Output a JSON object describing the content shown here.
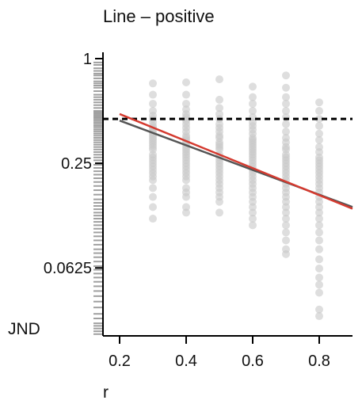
{
  "chart_data": {
    "type": "scatter",
    "title": "Line – positive",
    "xlabel": "r",
    "ylabel": "JND",
    "xlim": [
      0.15,
      0.9
    ],
    "ylim": [
      0.0254,
      1
    ],
    "yscale": "log",
    "xticks": [
      0.2,
      0.4,
      0.6,
      0.8
    ],
    "xtick_labels": [
      "0.2",
      "0.4",
      "0.6",
      "0.8"
    ],
    "yticks": [
      1,
      0.25,
      0.0625
    ],
    "ytick_labels": [
      "1",
      "0.25",
      "0.0625"
    ],
    "reference_line_y": 0.45,
    "fit_lines": [
      {
        "color": "#555555",
        "x": [
          0.2,
          0.9
        ],
        "y": [
          0.44,
          0.14
        ]
      },
      {
        "color": "#d43a2f",
        "x": [
          0.2,
          0.9
        ],
        "y": [
          0.48,
          0.137
        ]
      }
    ],
    "point_color": "#c8c8c8",
    "points": {
      "0.3": [
        0.72,
        0.62,
        0.55,
        0.5,
        0.47,
        0.45,
        0.43,
        0.41,
        0.4,
        0.39,
        0.38,
        0.37,
        0.36,
        0.35,
        0.34,
        0.33,
        0.32,
        0.31,
        0.3,
        0.28,
        0.27,
        0.26,
        0.25,
        0.24,
        0.23,
        0.22,
        0.21,
        0.2,
        0.18,
        0.16,
        0.14,
        0.12
      ],
      "0.4": [
        0.73,
        0.62,
        0.55,
        0.51,
        0.48,
        0.46,
        0.44,
        0.42,
        0.4,
        0.38,
        0.36,
        0.35,
        0.34,
        0.33,
        0.32,
        0.31,
        0.3,
        0.29,
        0.28,
        0.27,
        0.26,
        0.25,
        0.24,
        0.23,
        0.22,
        0.21,
        0.2,
        0.18,
        0.17,
        0.16,
        0.14,
        0.13
      ],
      "0.5": [
        0.76,
        0.58,
        0.52,
        0.48,
        0.45,
        0.42,
        0.4,
        0.38,
        0.36,
        0.35,
        0.33,
        0.32,
        0.31,
        0.3,
        0.28,
        0.27,
        0.26,
        0.25,
        0.24,
        0.23,
        0.22,
        0.21,
        0.2,
        0.19,
        0.18,
        0.17,
        0.16,
        0.15,
        0.13
      ],
      "0.6": [
        0.69,
        0.6,
        0.55,
        0.5,
        0.46,
        0.43,
        0.41,
        0.39,
        0.37,
        0.35,
        0.34,
        0.33,
        0.32,
        0.31,
        0.3,
        0.29,
        0.28,
        0.27,
        0.26,
        0.25,
        0.24,
        0.23,
        0.22,
        0.21,
        0.2,
        0.19,
        0.18,
        0.17,
        0.16,
        0.15,
        0.14,
        0.13,
        0.12,
        0.11
      ],
      "0.7": [
        0.8,
        0.68,
        0.6,
        0.55,
        0.5,
        0.46,
        0.42,
        0.38,
        0.35,
        0.33,
        0.31,
        0.3,
        0.28,
        0.27,
        0.26,
        0.25,
        0.24,
        0.23,
        0.22,
        0.21,
        0.2,
        0.19,
        0.18,
        0.17,
        0.16,
        0.15,
        0.14,
        0.13,
        0.12,
        0.11,
        0.1,
        0.09,
        0.08,
        0.075
      ],
      "0.8": [
        0.56,
        0.5,
        0.45,
        0.41,
        0.37,
        0.34,
        0.31,
        0.29,
        0.27,
        0.26,
        0.25,
        0.24,
        0.23,
        0.22,
        0.21,
        0.2,
        0.19,
        0.18,
        0.17,
        0.16,
        0.15,
        0.14,
        0.13,
        0.12,
        0.11,
        0.1,
        0.09,
        0.08,
        0.07,
        0.062,
        0.055,
        0.05,
        0.045,
        0.036,
        0.033
      ]
    },
    "y_rug": [
      0.95,
      0.92,
      0.88,
      0.85,
      0.82,
      0.8,
      0.77,
      0.74,
      0.72,
      0.7,
      0.68,
      0.65,
      0.62,
      0.6,
      0.58,
      0.56,
      0.54,
      0.52,
      0.5,
      0.49,
      0.48,
      0.47,
      0.46,
      0.45,
      0.44,
      0.43,
      0.42,
      0.41,
      0.4,
      0.39,
      0.38,
      0.37,
      0.36,
      0.35,
      0.34,
      0.33,
      0.32,
      0.31,
      0.3,
      0.29,
      0.28,
      0.27,
      0.26,
      0.245,
      0.235,
      0.225,
      0.215,
      0.205,
      0.195,
      0.185,
      0.175,
      0.165,
      0.155,
      0.148,
      0.142,
      0.136,
      0.13,
      0.125,
      0.12,
      0.115,
      0.11,
      0.105,
      0.1,
      0.095,
      0.09,
      0.085,
      0.08,
      0.076,
      0.072,
      0.068,
      0.064,
      0.061,
      0.058,
      0.055,
      0.052,
      0.049,
      0.046,
      0.043,
      0.04,
      0.037,
      0.034,
      0.032,
      0.03,
      0.029,
      0.028,
      0.027,
      0.026
    ]
  }
}
